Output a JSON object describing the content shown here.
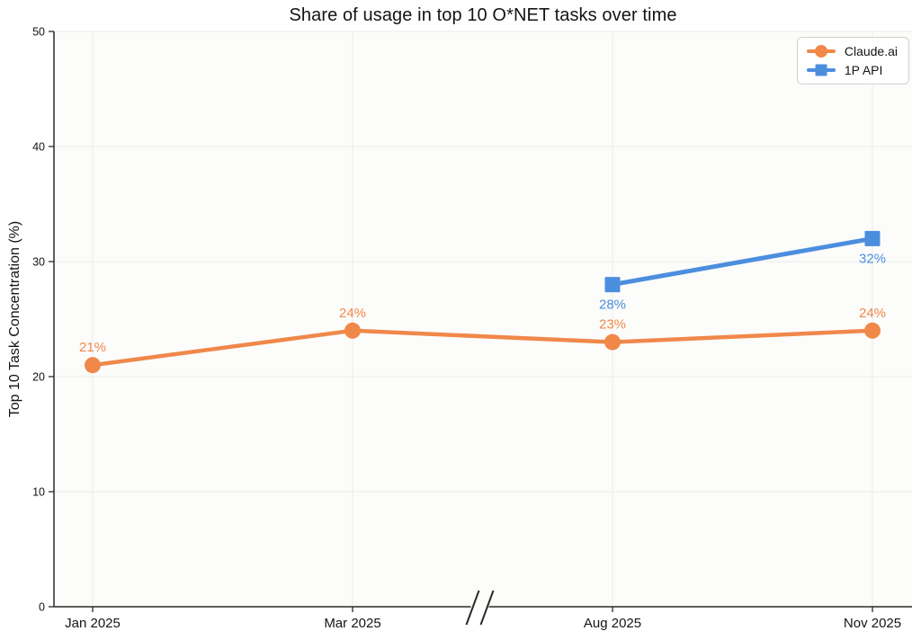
{
  "chart_data": {
    "type": "line",
    "title": "Share of usage in top 10 O*NET tasks over time",
    "ylabel": "Top 10 Task Concentration (%)",
    "xlabel": "",
    "x_tick_labels": [
      "Jan 2025",
      "Mar 2025",
      "Aug 2025",
      "Nov 2025"
    ],
    "y_ticks": [
      0,
      10,
      20,
      30,
      40,
      50
    ],
    "ylim": [
      0,
      50
    ],
    "grid": true,
    "axis_break_after": "Mar 2025",
    "legend_position": "top-right",
    "colors": {
      "text": "#141413",
      "axis": "#2a2a28",
      "gridline": "#ececea",
      "plot_background": "#fcfcfb"
    },
    "series": [
      {
        "name": "Claude.ai",
        "marker": "circle",
        "color": "#F0884A",
        "line_width": 4.5,
        "categories": [
          "Jan 2025",
          "Mar 2025",
          "Aug 2025",
          "Nov 2025"
        ],
        "values": [
          21,
          24,
          23,
          24
        ],
        "point_labels": [
          "21%",
          "24%",
          "23%",
          "24%"
        ],
        "label_position": "above"
      },
      {
        "name": "1P API",
        "marker": "square",
        "color": "#4C8EDE",
        "line_width": 5,
        "categories": [
          "Aug 2025",
          "Nov 2025"
        ],
        "values": [
          28,
          32
        ],
        "point_labels": [
          "28%",
          "32%"
        ],
        "label_position": "below"
      }
    ]
  }
}
